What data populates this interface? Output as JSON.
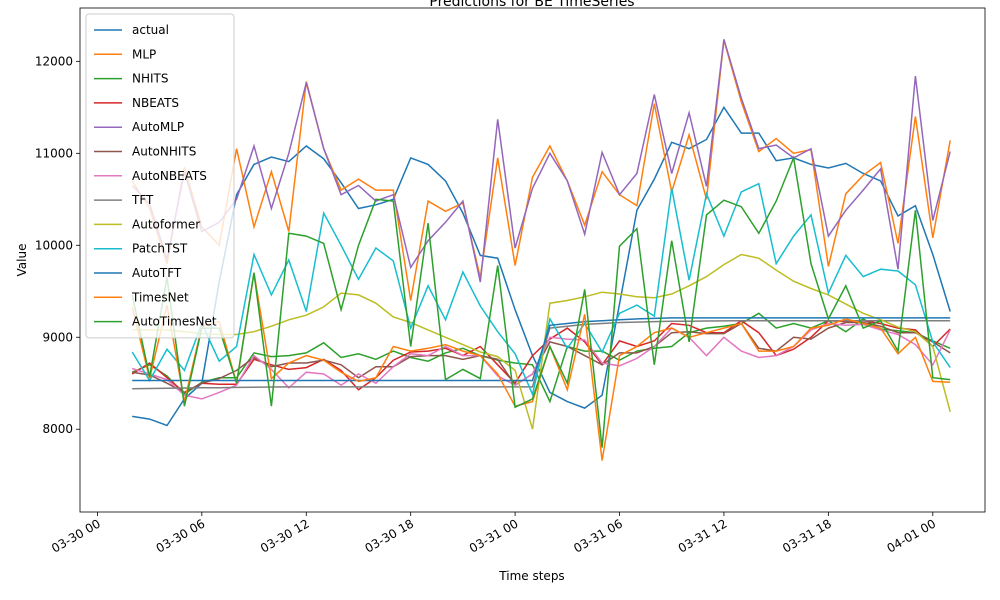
{
  "chart_data": {
    "type": "line",
    "title": "Predictions for BE TimeSeries",
    "xlabel": "Time steps",
    "ylabel": "Value",
    "legend": "upper left",
    "x": [
      "03-30 02",
      "03-30 03",
      "03-30 04",
      "03-30 05",
      "03-30 06",
      "03-30 07",
      "03-30 08",
      "03-30 09",
      "03-30 10",
      "03-30 11",
      "03-30 12",
      "03-30 13",
      "03-30 14",
      "03-30 15",
      "03-30 16",
      "03-30 17",
      "03-30 18",
      "03-30 19",
      "03-30 20",
      "03-30 21",
      "03-30 22",
      "03-30 23",
      "03-31 00",
      "03-31 01",
      "03-31 02",
      "03-31 03",
      "03-31 04",
      "03-31 05",
      "03-31 06",
      "03-31 07",
      "03-31 08",
      "03-31 09",
      "03-31 10",
      "03-31 11",
      "03-31 12",
      "03-31 13",
      "03-31 14",
      "03-31 15",
      "03-31 16",
      "03-31 17",
      "03-31 18",
      "03-31 19",
      "03-31 20",
      "03-31 21",
      "03-31 22",
      "03-31 23",
      "04-01 00",
      "04-01 01"
    ],
    "xlim": [
      "03-29 23",
      "04-01 03"
    ],
    "xticks": [
      "03-30 00",
      "03-30 06",
      "03-30 12",
      "03-30 18",
      "03-31 00",
      "03-31 06",
      "03-31 12",
      "03-31 18",
      "04-01 00"
    ],
    "ylim": [
      7100,
      12580
    ],
    "yticks": [
      8000,
      9000,
      10000,
      11000,
      12000
    ],
    "series": [
      {
        "name": "actual",
        "color": "#1f77b4",
        "values": [
          8140,
          8110,
          8040,
          8330,
          8500,
          9600,
          10550,
          10880,
          10960,
          10910,
          11080,
          10940,
          10680,
          10400,
          10440,
          10500,
          10950,
          10880,
          10700,
          10350,
          9890,
          9860,
          9300,
          8800,
          8400,
          8300,
          8230,
          8370,
          9360,
          10380,
          10720,
          11120,
          11050,
          11150,
          11500,
          11220,
          11220,
          10920,
          10950,
          10880,
          10840,
          10890,
          10780,
          10700,
          10320,
          10430,
          9900,
          9280
        ]
      },
      {
        "name": "MLP",
        "color": "#ff7f0e",
        "values": [
          10700,
          10400,
          9800,
          10850,
          10200,
          10000,
          11050,
          10200,
          10800,
          10150,
          11780,
          11050,
          10600,
          10720,
          10600,
          10600,
          9400,
          10480,
          10370,
          10460,
          9650,
          10950,
          9780,
          10740,
          11080,
          10700,
          10220,
          10800,
          10550,
          10430,
          11540,
          10580,
          11200,
          10500,
          12230,
          11560,
          11020,
          11160,
          11000,
          11040,
          9770,
          10560,
          10760,
          10900,
          10020,
          11400,
          10080,
          11140
        ]
      },
      {
        "name": "NHITS",
        "color": "#2ca02c",
        "values": [
          8620,
          8700,
          8580,
          8380,
          8510,
          8560,
          8560,
          8830,
          8790,
          8800,
          8830,
          8940,
          8780,
          8820,
          8760,
          8850,
          8780,
          8740,
          8830,
          8880,
          8800,
          8750,
          8720,
          8700,
          8300,
          8900,
          8850,
          8850,
          8750,
          8850,
          8880,
          8900,
          9050,
          9100,
          9120,
          9150,
          9260,
          9100,
          9150,
          9100,
          9180,
          9060,
          9200,
          9090,
          9070,
          9050,
          8960,
          8880
        ]
      },
      {
        "name": "NBEATS",
        "color": "#d62728",
        "values": [
          8600,
          8720,
          8560,
          8400,
          8500,
          8490,
          8490,
          8760,
          8700,
          8650,
          8670,
          8760,
          8640,
          8430,
          8560,
          8750,
          8840,
          8850,
          8880,
          8800,
          8900,
          8700,
          8500,
          8800,
          8980,
          9100,
          8950,
          8700,
          8960,
          8900,
          8960,
          9150,
          9130,
          9050,
          9050,
          9180,
          9050,
          8800,
          8870,
          9000,
          9180,
          9170,
          9180,
          9150,
          9100,
          9080,
          8900,
          9090
        ]
      },
      {
        "name": "AutoMLP",
        "color": "#9467bd",
        "values": [
          10650,
          10450,
          9850,
          10800,
          10150,
          10250,
          10500,
          11080,
          10400,
          11000,
          11770,
          11050,
          10550,
          10650,
          10480,
          10550,
          9760,
          10050,
          10250,
          10480,
          9600,
          11370,
          9970,
          10620,
          11000,
          10700,
          10120,
          11010,
          10550,
          10780,
          11640,
          10780,
          11440,
          10640,
          12240,
          11600,
          11050,
          11090,
          10950,
          11050,
          10100,
          10380,
          10600,
          10830,
          9740,
          11840,
          10270,
          11020
        ]
      },
      {
        "name": "AutoNHITS",
        "color": "#8c564b",
        "values": [
          8620,
          8590,
          8500,
          8400,
          8500,
          8550,
          8640,
          8780,
          8680,
          8720,
          8720,
          8750,
          8700,
          8560,
          8680,
          8680,
          8790,
          8800,
          8800,
          8760,
          8800,
          8760,
          8480,
          8600,
          8950,
          8900,
          8800,
          8700,
          8830,
          8830,
          8900,
          9050,
          9060,
          9040,
          9040,
          9150,
          8880,
          8850,
          9000,
          8980,
          9100,
          9160,
          9160,
          9120,
          9050,
          9050,
          8950,
          8830
        ]
      },
      {
        "name": "AutoNBEATS",
        "color": "#e377c2",
        "values": [
          8660,
          8600,
          8540,
          8370,
          8330,
          8400,
          8480,
          8800,
          8650,
          8450,
          8620,
          8600,
          8480,
          8600,
          8500,
          8680,
          8820,
          8800,
          8900,
          8800,
          8800,
          8580,
          8480,
          8600,
          9000,
          8980,
          8970,
          8720,
          8690,
          8770,
          8900,
          9100,
          9000,
          8800,
          9000,
          8850,
          8780,
          8800,
          8900,
          9080,
          9150,
          9130,
          9140,
          9080,
          9030,
          8920,
          8700,
          9080
        ]
      },
      {
        "name": "TFT",
        "color": "#7f7f7f",
        "values": [
          8440,
          8443,
          8445,
          8448,
          8450,
          8452,
          8455,
          8457,
          8459,
          8460,
          8460,
          8460,
          8460,
          8460,
          8460,
          8460,
          8460,
          8460,
          8460,
          8460,
          8460,
          8460,
          8460,
          8460,
          9100,
          9120,
          9140,
          9150,
          9160,
          9165,
          9170,
          9173,
          9175,
          9177,
          9178,
          9180,
          9180,
          9180,
          9180,
          9180,
          9180,
          9180,
          9180,
          9180,
          9180,
          9180,
          9180,
          9180
        ]
      },
      {
        "name": "Autoformer",
        "color": "#bcbd22",
        "values": [
          9080,
          9080,
          9080,
          9060,
          9040,
          9030,
          9030,
          9060,
          9120,
          9190,
          9240,
          9330,
          9480,
          9460,
          9370,
          9220,
          9160,
          9080,
          9000,
          8920,
          8840,
          8790,
          8640,
          8000,
          9370,
          9400,
          9440,
          9490,
          9470,
          9440,
          9430,
          9470,
          9560,
          9660,
          9790,
          9900,
          9860,
          9730,
          9610,
          9530,
          9460,
          9360,
          9260,
          9190,
          9110,
          9060,
          8900,
          8190
        ]
      },
      {
        "name": "PatchTST",
        "color": "#17becf",
        "values": [
          8840,
          8530,
          8870,
          8640,
          9150,
          8740,
          8900,
          9900,
          9460,
          9840,
          9280,
          10350,
          10000,
          9630,
          9970,
          9830,
          9100,
          9560,
          9190,
          9710,
          9340,
          9060,
          8820,
          8380,
          9200,
          8880,
          9150,
          8840,
          9260,
          9350,
          9230,
          10620,
          9620,
          10560,
          10100,
          10580,
          10670,
          9800,
          10100,
          10330,
          9480,
          9890,
          9660,
          9740,
          9720,
          9570,
          8950,
          8670
        ]
      },
      {
        "name": "AutoTFT",
        "color": "#1f77b4",
        "values": [
          8530,
          8530,
          8530,
          8530,
          8530,
          8530,
          8530,
          8530,
          8530,
          8530,
          8530,
          8530,
          8530,
          8530,
          8530,
          8530,
          8530,
          8530,
          8530,
          8530,
          8530,
          8530,
          8530,
          8530,
          9130,
          9150,
          9170,
          9180,
          9190,
          9200,
          9205,
          9210,
          9210,
          9210,
          9210,
          9210,
          9210,
          9210,
          9210,
          9210,
          9210,
          9210,
          9210,
          9210,
          9210,
          9210,
          9210,
          9210
        ]
      },
      {
        "name": "TimesNet",
        "color": "#ff7f0e",
        "values": [
          9330,
          8550,
          9350,
          8300,
          9120,
          9170,
          8500,
          9700,
          8550,
          8720,
          8800,
          8750,
          8620,
          8520,
          8560,
          8900,
          8850,
          8880,
          8920,
          8850,
          8800,
          8600,
          8250,
          8300,
          8900,
          8430,
          9250,
          7660,
          8800,
          8900,
          9050,
          9100,
          9000,
          9050,
          9100,
          9150,
          8850,
          8850,
          8900,
          9100,
          9130,
          9200,
          9150,
          9100,
          8820,
          9000,
          8520,
          8510
        ]
      },
      {
        "name": "AutoTimesNet",
        "color": "#2ca02c",
        "values": [
          9460,
          8570,
          9650,
          8250,
          9100,
          9100,
          8500,
          9700,
          8250,
          10130,
          10100,
          10020,
          9300,
          10000,
          10500,
          10480,
          8900,
          10240,
          8540,
          8650,
          8550,
          9780,
          8240,
          8330,
          8900,
          8500,
          9520,
          7800,
          9990,
          10180,
          8700,
          10050,
          8950,
          10330,
          10490,
          10420,
          10130,
          10480,
          10950,
          9800,
          9200,
          9560,
          9100,
          9180,
          8850,
          10380,
          8560,
          8540
        ]
      }
    ]
  }
}
